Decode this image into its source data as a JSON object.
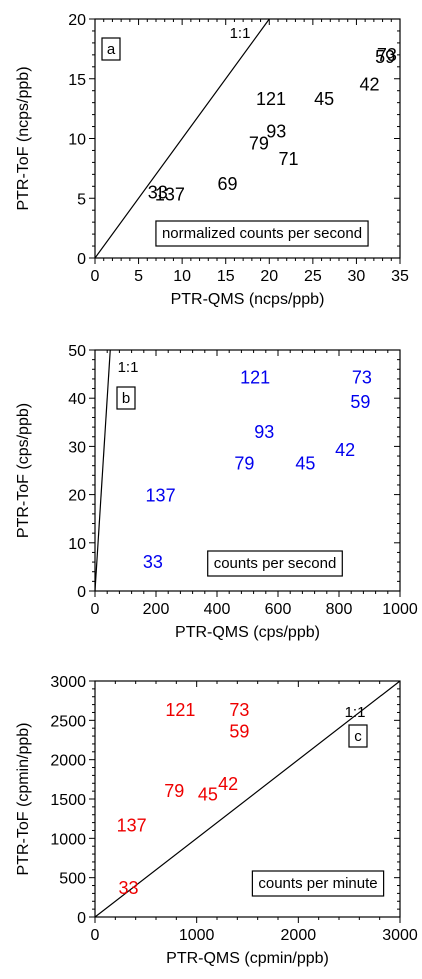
{
  "chart_data": [
    {
      "type": "scatter",
      "panel_letter": "a",
      "annotation": "normalized counts per second",
      "xlabel": "PTR-QMS (ncps/ppb)",
      "ylabel": "PTR-ToF (ncps/ppb)",
      "xlim": [
        0,
        35
      ],
      "ylim": [
        0,
        20
      ],
      "xticks": [
        0,
        5,
        10,
        15,
        20,
        25,
        30,
        35
      ],
      "yticks": [
        0,
        5,
        10,
        15,
        20
      ],
      "label_color": "#000000",
      "reference_line": {
        "label": "1:1",
        "from": [
          0,
          0
        ],
        "to": [
          20,
          20
        ]
      },
      "points": [
        {
          "label": "73",
          "x": 33.5,
          "y": 17.0
        },
        {
          "label": "59",
          "x": 33.3,
          "y": 16.8
        },
        {
          "label": "42",
          "x": 31.5,
          "y": 14.5
        },
        {
          "label": "121",
          "x": 20.2,
          "y": 13.3
        },
        {
          "label": "45",
          "x": 26.3,
          "y": 13.3
        },
        {
          "label": "93",
          "x": 20.8,
          "y": 10.6
        },
        {
          "label": "79",
          "x": 18.8,
          "y": 9.6
        },
        {
          "label": "71",
          "x": 22.2,
          "y": 8.3
        },
        {
          "label": "69",
          "x": 15.2,
          "y": 6.2
        },
        {
          "label": "33",
          "x": 7.2,
          "y": 5.5
        },
        {
          "label": "137",
          "x": 8.6,
          "y": 5.3
        }
      ]
    },
    {
      "type": "scatter",
      "panel_letter": "b",
      "annotation": "counts per second",
      "xlabel": "PTR-QMS (cps/ppb)",
      "ylabel": "PTR-ToF (cps/ppb)",
      "xlim": [
        0,
        1000
      ],
      "ylim": [
        0,
        50
      ],
      "xticks": [
        0,
        200,
        400,
        600,
        800,
        1000
      ],
      "yticks": [
        0,
        10,
        20,
        30,
        40,
        50
      ],
      "label_color": "#0000ee",
      "reference_line": {
        "label": "1:1",
        "from": [
          0,
          0
        ],
        "to": [
          50,
          50
        ]
      },
      "points": [
        {
          "label": "121",
          "x": 525,
          "y": 44.3
        },
        {
          "label": "73",
          "x": 875,
          "y": 44.3
        },
        {
          "label": "59",
          "x": 870,
          "y": 39.2
        },
        {
          "label": "93",
          "x": 555,
          "y": 33.0
        },
        {
          "label": "42",
          "x": 820,
          "y": 29.3
        },
        {
          "label": "79",
          "x": 490,
          "y": 26.5
        },
        {
          "label": "45",
          "x": 690,
          "y": 26.5
        },
        {
          "label": "137",
          "x": 215,
          "y": 19.8
        },
        {
          "label": "33",
          "x": 190,
          "y": 6.0
        }
      ]
    },
    {
      "type": "scatter",
      "panel_letter": "c",
      "annotation": "counts per minute",
      "xlabel": "PTR-QMS (cpmin/ppb)",
      "ylabel": "PTR-ToF (cpmin/ppb)",
      "xlim": [
        0,
        3000
      ],
      "ylim": [
        0,
        3000
      ],
      "xticks": [
        0,
        1000,
        2000,
        3000
      ],
      "yticks": [
        0,
        500,
        1000,
        1500,
        2000,
        2500,
        3000
      ],
      "label_color": "#ee0000",
      "reference_line": {
        "label": "1:1",
        "from": [
          0,
          0
        ],
        "to": [
          3000,
          3000
        ]
      },
      "points": [
        {
          "label": "121",
          "x": 840,
          "y": 2630
        },
        {
          "label": "73",
          "x": 1420,
          "y": 2630
        },
        {
          "label": "59",
          "x": 1420,
          "y": 2360
        },
        {
          "label": "42",
          "x": 1310,
          "y": 1690
        },
        {
          "label": "79",
          "x": 780,
          "y": 1600
        },
        {
          "label": "45",
          "x": 1110,
          "y": 1560
        },
        {
          "label": "137",
          "x": 360,
          "y": 1160
        },
        {
          "label": "33",
          "x": 330,
          "y": 370
        }
      ]
    }
  ]
}
